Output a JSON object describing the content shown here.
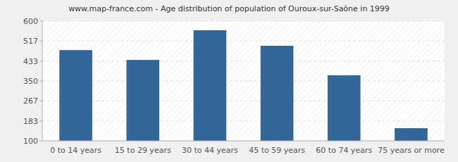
{
  "chart_data": {
    "type": "bar",
    "title": "www.map-france.com - Age distribution of population of Ouroux-sur-Saône in 1999",
    "categories": [
      "0 to 14 years",
      "15 to 29 years",
      "30 to 44 years",
      "45 to 59 years",
      "60 to 74 years",
      "75 years or more"
    ],
    "values": [
      479,
      438,
      562,
      497,
      374,
      153
    ],
    "color": "#336699",
    "ylim": [
      100,
      600
    ],
    "yticks": [
      100,
      183,
      267,
      350,
      433,
      517,
      600
    ],
    "grid": true
  }
}
